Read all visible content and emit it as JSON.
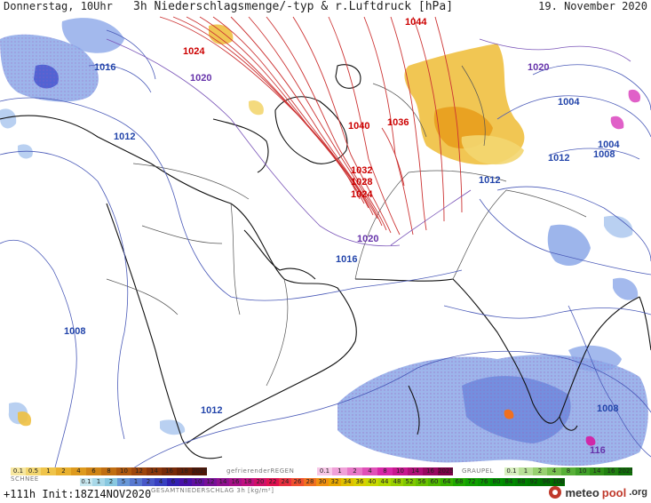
{
  "header": {
    "left": "Donnerstag, 10Uhr",
    "title": "3h Niederschlagsmenge/-typ & r.Luftdruck [hPa]",
    "date": "19. November 2020"
  },
  "isobar_labels": [
    {
      "text": "1044",
      "color": "#cc0000"
    },
    {
      "text": "1024",
      "color": "#cc0000"
    },
    {
      "text": "1040",
      "color": "#cc0000"
    },
    {
      "text": "1036",
      "color": "#cc0000"
    },
    {
      "text": "1032",
      "color": "#cc0000"
    },
    {
      "text": "1028",
      "color": "#cc0000"
    },
    {
      "text": "1024",
      "color": "#cc0000"
    },
    {
      "text": "1020",
      "color": "#6633aa"
    },
    {
      "text": "1020",
      "color": "#6633aa"
    },
    {
      "text": "1020",
      "color": "#6633aa"
    },
    {
      "text": "1016",
      "color": "#2244aa"
    },
    {
      "text": "1016",
      "color": "#2244aa"
    },
    {
      "text": "1012",
      "color": "#2244aa"
    },
    {
      "text": "1012",
      "color": "#2244aa"
    },
    {
      "text": "1012",
      "color": "#2244aa"
    },
    {
      "text": "1012",
      "color": "#2244aa"
    },
    {
      "text": "1008",
      "color": "#2244aa"
    },
    {
      "text": "1008",
      "color": "#2244aa"
    },
    {
      "text": "1008",
      "color": "#2244aa"
    },
    {
      "text": "1004",
      "color": "#2244aa"
    },
    {
      "text": "1004",
      "color": "#2244aa"
    },
    {
      "text": "116",
      "color": "#6633aa"
    }
  ],
  "legend": {
    "snow_label": "SCHNEE",
    "freezing_rain_label": "gefrierenderREGEN",
    "graupel_label": "GRAUPEL",
    "total_label": "GESAMTNIEDERSCHLAG 3h [kg/m²]",
    "snow_scale": [
      "0.1",
      "0.5",
      "1",
      "2",
      "4",
      "6",
      "8",
      "10",
      "12",
      "14",
      "16",
      "18",
      "2025+"
    ],
    "freezing_scale": [
      "0.1",
      "1",
      "2",
      "4",
      "8",
      "10",
      "14",
      "16",
      "2025+"
    ],
    "graupel_scale": [
      "0.1",
      "1",
      "2",
      "4",
      "8",
      "10",
      "14",
      "16",
      "2025+"
    ],
    "total_scale": [
      "0.1",
      "1",
      "2",
      "5",
      "1",
      "2",
      "4",
      "6",
      "8",
      "10",
      "12",
      "14",
      "16",
      "18",
      "20",
      "22",
      "24",
      "26",
      "28",
      "30",
      "32",
      "34",
      "36",
      "40",
      "44",
      "48",
      "52",
      "56",
      "60",
      "64",
      "68",
      "72",
      "76",
      "80",
      "84",
      "88",
      "92",
      "96",
      "100"
    ],
    "colors": {
      "snow": [
        "#f7e7a0",
        "#f3d670",
        "#efc44a",
        "#e8b02e",
        "#dd9a1e",
        "#cf8416",
        "#c06e12",
        "#b0590f",
        "#9e460d",
        "#8a360b",
        "#772a09",
        "#642007",
        "#521606"
      ],
      "freezing": [
        "#f8c8e8",
        "#f0a0d8",
        "#e878c8",
        "#e050b8",
        "#d828a8",
        "#c81890",
        "#b01078",
        "#980860",
        "#800048"
      ],
      "graupel": [
        "#d8f0c0",
        "#b8e098",
        "#98d070",
        "#78c050",
        "#58b038",
        "#40a028",
        "#309018",
        "#208010",
        "#107008"
      ],
      "total": [
        "#c8e8f0",
        "#a8d8e8",
        "#88c8e0",
        "#6898d8",
        "#5878d0",
        "#4858c8",
        "#3840c0",
        "#3020b0",
        "#4810a8",
        "#6010a0",
        "#781098",
        "#901090",
        "#a81088",
        "#c01080",
        "#d01068",
        "#e01050",
        "#e83040",
        "#f05030",
        "#f07020",
        "#f09010",
        "#e8a800",
        "#e0c000",
        "#d8d000",
        "#c8d800",
        "#b0d800",
        "#98d000",
        "#80c800",
        "#68c000",
        "#50b800",
        "#38b000",
        "#20a800",
        "#10a000",
        "#089800",
        "#009000",
        "#008800",
        "#008000",
        "#007800",
        "#007000",
        "#006800"
      ]
    }
  },
  "footer": {
    "run": "+111h  Init:18Z14NOV2020",
    "logo_meteo": "meteo",
    "logo_pool": "pool",
    "logo_org": ".org"
  }
}
